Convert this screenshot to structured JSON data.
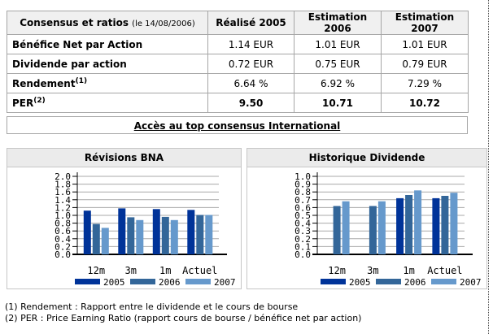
{
  "consensus_table": {
    "title": "Consensus et ratios",
    "date_note": "(le 14/08/2006)",
    "columns": [
      "Réalisé 2005",
      "Estimation 2006",
      "Estimation 2007"
    ],
    "rows": [
      {
        "label": "Bénéfice Net par Action",
        "sup": "",
        "values": [
          "1.14 EUR",
          "1.01 EUR",
          "1.01 EUR"
        ]
      },
      {
        "label": "Dividende par action",
        "sup": "",
        "values": [
          "0.72 EUR",
          "0.75 EUR",
          "0.79 EUR"
        ]
      },
      {
        "label": "Rendement",
        "sup": "(1)",
        "values": [
          "6.64 %",
          "6.92 %",
          "7.29 %"
        ]
      },
      {
        "label": "PER",
        "sup": "(2)",
        "values": [
          "9.50",
          "10.71",
          "10.72"
        ]
      }
    ]
  },
  "link": {
    "label": "Accès au top consensus International"
  },
  "chart_data": [
    {
      "type": "bar",
      "title": "Révisions BNA",
      "categories": [
        "12m",
        "3m",
        "1m",
        "Actuel"
      ],
      "series": [
        {
          "name": "2005",
          "color": "#003399",
          "values": [
            1.12,
            1.18,
            1.16,
            1.14
          ]
        },
        {
          "name": "2006",
          "color": "#336699",
          "values": [
            0.78,
            0.95,
            0.96,
            1.01
          ]
        },
        {
          "name": "2007",
          "color": "#6699cc",
          "values": [
            0.68,
            0.88,
            0.88,
            1.01
          ]
        }
      ],
      "ylim": [
        0,
        2.0
      ],
      "ytick_step": 0.2,
      "grid": true,
      "legend_position": "bottom-right"
    },
    {
      "type": "bar",
      "title": "Historique Dividende",
      "categories": [
        "12m",
        "3m",
        "1m",
        "Actuel"
      ],
      "series": [
        {
          "name": "2005",
          "color": "#003399",
          "values": [
            null,
            null,
            0.72,
            0.72
          ]
        },
        {
          "name": "2006",
          "color": "#336699",
          "values": [
            0.62,
            0.62,
            0.76,
            0.75
          ]
        },
        {
          "name": "2007",
          "color": "#6699cc",
          "values": [
            0.68,
            0.68,
            0.82,
            0.79
          ]
        }
      ],
      "ylim": [
        0,
        1.0
      ],
      "ytick_step": 0.1,
      "grid": true,
      "legend_position": "bottom-right"
    }
  ],
  "footnotes": [
    "(1) Rendement : Rapport entre le dividende et le cours de bourse",
    "(2) PER : Price Earning Ratio (rapport cours de bourse / bénéfice net par action)"
  ],
  "colors": {
    "series_2005": "#003399",
    "series_2006": "#336699",
    "series_2007": "#6699cc",
    "grid": "#aaaaaa",
    "axis": "#000000",
    "panel_header_bg": "#ebebeb",
    "table_header_bg": "#f0f0f0",
    "border": "#a6a6a6"
  }
}
